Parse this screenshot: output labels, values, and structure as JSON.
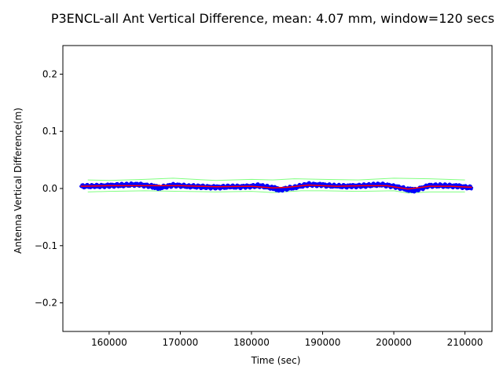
{
  "chart_data": {
    "type": "line",
    "title": "P3ENCL-all Ant Vertical Difference, mean: 4.07 mm, window=120 secs",
    "xlabel": "Time (sec)",
    "ylabel": "Antenna Vertical Difference(m)",
    "xlim": [
      153500,
      213800
    ],
    "ylim": [
      -0.25,
      0.25
    ],
    "x_ticks": [
      160000,
      170000,
      180000,
      190000,
      200000,
      210000
    ],
    "x_tick_labels": [
      "160000",
      "170000",
      "180000",
      "190000",
      "200000",
      "210000"
    ],
    "y_ticks": [
      -0.2,
      -0.1,
      0.0,
      0.1,
      0.2
    ],
    "y_tick_labels": [
      "−0.2",
      "−0.1",
      "0.0",
      "0.1",
      "0.2"
    ],
    "grid": false,
    "series": [
      {
        "role": "raw-difference",
        "color": "#0000ff",
        "style": "scatter-dense",
        "x": [
          156000,
          158000,
          160000,
          162000,
          164000,
          166000,
          167000,
          169000,
          171000,
          173000,
          175000,
          177000,
          179000,
          181000,
          183000,
          184000,
          186000,
          188000,
          190000,
          192000,
          194000,
          196000,
          198000,
          200000,
          202000,
          203000,
          205000,
          207000,
          209000,
          211000
        ],
        "y": [
          0.004,
          0.004,
          0.005,
          0.006,
          0.007,
          0.004,
          0.001,
          0.006,
          0.004,
          0.003,
          0.002,
          0.003,
          0.003,
          0.005,
          0.001,
          -0.002,
          0.002,
          0.007,
          0.006,
          0.004,
          0.004,
          0.005,
          0.007,
          0.004,
          -0.002,
          -0.003,
          0.005,
          0.005,
          0.004,
          0.001
        ]
      },
      {
        "role": "running-mean",
        "color": "#ff0000",
        "style": "line",
        "x": [
          156000,
          160000,
          165000,
          170000,
          175000,
          180000,
          183000,
          185000,
          188000,
          192000,
          196000,
          199000,
          202000,
          205000,
          208000,
          211000
        ],
        "y": [
          0.004,
          0.005,
          0.005,
          0.005,
          0.003,
          0.004,
          0.001,
          0.002,
          0.006,
          0.004,
          0.005,
          0.005,
          -0.001,
          0.004,
          0.004,
          0.002
        ]
      },
      {
        "role": "upper-envelope",
        "color": "#80ff80",
        "style": "line",
        "x": [
          157000,
          160000,
          165000,
          169000,
          175000,
          180000,
          183000,
          186000,
          190000,
          195000,
          200000,
          205000,
          210000
        ],
        "y": [
          0.015,
          0.014,
          0.016,
          0.018,
          0.014,
          0.016,
          0.015,
          0.017,
          0.016,
          0.015,
          0.018,
          0.017,
          0.015
        ]
      },
      {
        "role": "lower-envelope",
        "color": "#80ff80",
        "style": "line",
        "x": [
          157000,
          160000,
          165000,
          170000,
          175000,
          180000,
          183000,
          187000,
          190000,
          195000,
          200000,
          202000,
          205000,
          210000
        ],
        "y": [
          -0.006,
          -0.005,
          -0.004,
          -0.005,
          -0.006,
          -0.005,
          -0.007,
          -0.004,
          -0.004,
          -0.005,
          -0.004,
          -0.008,
          -0.006,
          -0.006
        ]
      }
    ]
  }
}
